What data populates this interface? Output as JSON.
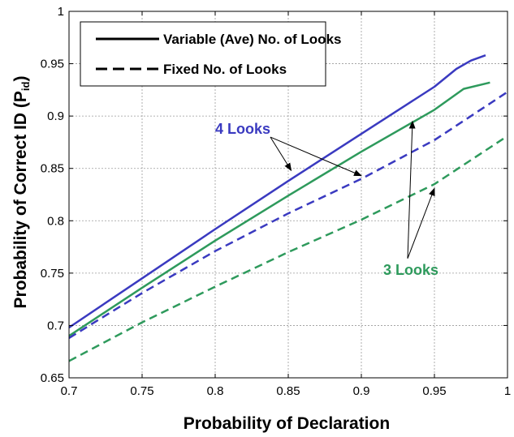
{
  "chart_data": {
    "type": "line",
    "xlabel": "Probability of Declaration",
    "ylabel_main": "Probability of Correct ID (P",
    "ylabel_sub": "id",
    "ylabel_end": ")",
    "xlim": [
      0.7,
      1.0
    ],
    "ylim": [
      0.65,
      1.0
    ],
    "xticks": [
      "0.7",
      "0.75",
      "0.8",
      "0.85",
      "0.9",
      "0.95",
      "1"
    ],
    "yticks": [
      "0.65",
      "0.7",
      "0.75",
      "0.8",
      "0.85",
      "0.9",
      "0.95",
      "1"
    ],
    "grid": true,
    "legend": {
      "placement": "top-left",
      "entries": [
        {
          "label": "Variable (Ave) No. of Looks",
          "style": "solid"
        },
        {
          "label": "Fixed No. of Looks",
          "style": "dashed"
        }
      ]
    },
    "colors": {
      "four_looks": "#3a3ac0",
      "three_looks": "#2e9a5c"
    },
    "series": [
      {
        "group": "4 Looks",
        "style": "solid",
        "color": "#3a3ac0",
        "points": [
          [
            0.7,
            0.698
          ],
          [
            0.75,
            0.745
          ],
          [
            0.8,
            0.792
          ],
          [
            0.85,
            0.838
          ],
          [
            0.9,
            0.883
          ],
          [
            0.95,
            0.928
          ],
          [
            0.965,
            0.945
          ],
          [
            0.975,
            0.953
          ],
          [
            0.985,
            0.958
          ]
        ]
      },
      {
        "group": "3 Looks",
        "style": "solid",
        "color": "#2e9a5c",
        "points": [
          [
            0.7,
            0.69
          ],
          [
            0.75,
            0.736
          ],
          [
            0.8,
            0.781
          ],
          [
            0.85,
            0.824
          ],
          [
            0.9,
            0.866
          ],
          [
            0.95,
            0.906
          ],
          [
            0.97,
            0.926
          ],
          [
            0.988,
            0.932
          ]
        ]
      },
      {
        "group": "4 Looks",
        "style": "dashed",
        "color": "#3a3ac0",
        "points": [
          [
            0.7,
            0.688
          ],
          [
            0.75,
            0.731
          ],
          [
            0.8,
            0.771
          ],
          [
            0.85,
            0.807
          ],
          [
            0.9,
            0.84
          ],
          [
            0.95,
            0.877
          ],
          [
            1.0,
            0.923
          ]
        ]
      },
      {
        "group": "3 Looks",
        "style": "dashed",
        "color": "#2e9a5c",
        "points": [
          [
            0.7,
            0.666
          ],
          [
            0.75,
            0.703
          ],
          [
            0.8,
            0.737
          ],
          [
            0.85,
            0.77
          ],
          [
            0.9,
            0.801
          ],
          [
            0.95,
            0.835
          ],
          [
            1.0,
            0.881
          ]
        ]
      }
    ],
    "annotations": [
      {
        "text": "4 Looks",
        "color": "#3a3ac0",
        "label_at": [
          0.8,
          0.883
        ],
        "arrow_to": [
          [
            0.852,
            0.848
          ],
          [
            0.9,
            0.843
          ]
        ]
      },
      {
        "text": "3 Looks",
        "color": "#2e9a5c",
        "label_at": [
          0.915,
          0.7485
        ],
        "arrow_to": [
          [
            0.935,
            0.895
          ],
          [
            0.95,
            0.831
          ]
        ]
      }
    ]
  }
}
